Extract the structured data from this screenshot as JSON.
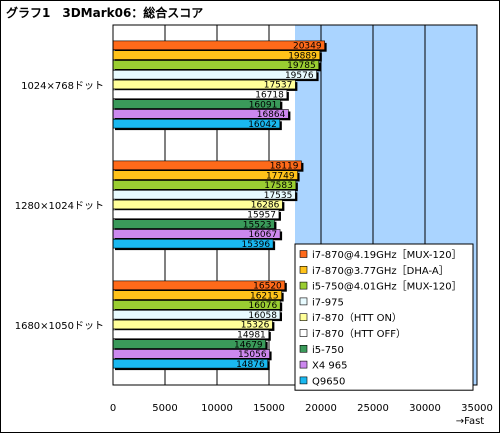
{
  "title": "グラフ1　3DMark06：総合スコア",
  "chart_data": {
    "type": "bar",
    "orientation": "horizontal",
    "categories": [
      "1024×768ドット",
      "1280×1024ドット",
      "1680×1050ドット"
    ],
    "series": [
      {
        "name": "i7-870@4.19GHz［MUX-120］",
        "color": "#ff6a1a",
        "values": [
          20349,
          18119,
          16520
        ]
      },
      {
        "name": "i7-870@3.77GHz［DHA-A］",
        "color": "#ffc21a",
        "values": [
          19889,
          17749,
          16215
        ]
      },
      {
        "name": "i5-750@4.01GHz［MUX-120］",
        "color": "#9acd32",
        "values": [
          19785,
          17583,
          16076
        ]
      },
      {
        "name": "i7-975",
        "color": "#e8fbff",
        "values": [
          19576,
          17535,
          16058
        ]
      },
      {
        "name": "i7-870（HTT ON）",
        "color": "#ffff99",
        "values": [
          17537,
          16286,
          15326
        ]
      },
      {
        "name": "i7-870（HTT OFF）",
        "color": "#ffffff",
        "values": [
          16718,
          15957,
          14981
        ]
      },
      {
        "name": "i5-750",
        "color": "#3a9a5a",
        "values": [
          16091,
          15523,
          14679
        ]
      },
      {
        "name": "X4 965",
        "color": "#cc88ee",
        "values": [
          16864,
          16067,
          15056
        ]
      },
      {
        "name": "Q9650",
        "color": "#1ab8f0",
        "values": [
          16042,
          15396,
          14876
        ]
      }
    ],
    "xlim": [
      0,
      35000
    ],
    "xticks": [
      0,
      5000,
      10000,
      15000,
      20000,
      25000,
      30000,
      35000
    ],
    "unit_label": "→Fast",
    "legend_position": "right",
    "plot_background_colors": [
      "#ffffff",
      "#aad4ff"
    ]
  }
}
